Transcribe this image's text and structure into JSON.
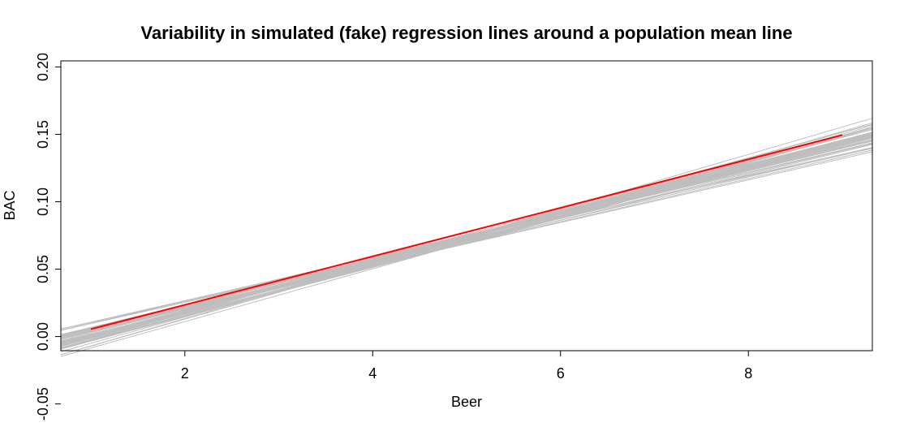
{
  "chart_data": {
    "type": "line",
    "title": "Variability in simulated (fake) regression lines around a population mean line",
    "xlabel": "Beer",
    "ylabel": "BAC",
    "xlim": [
      0.68,
      9.32
    ],
    "ylim": [
      -0.0105,
      0.2045
    ],
    "x_ticks": [
      2,
      4,
      6,
      8
    ],
    "y_ticks": [
      -0.05,
      0.0,
      0.05,
      0.1,
      0.15,
      0.2
    ],
    "y_tick_labels": [
      "-0.05",
      "0.00",
      "0.05",
      "0.10",
      "0.15",
      "0.20"
    ],
    "grid": false,
    "colors": {
      "simulated": "#bebebe",
      "population": "#ff0000",
      "axis": "#000000"
    },
    "population_line": {
      "x": [
        1,
        9
      ],
      "y": [
        0.0055,
        0.1495
      ]
    },
    "simulated_lines": {
      "count": 50,
      "pivot_x": 4.55,
      "pivot_y": 0.0646,
      "slopes": [
        0.0155,
        0.0168,
        0.0172,
        0.0181,
        0.0203,
        0.0176,
        0.0163,
        0.0185,
        0.0192,
        0.0171,
        0.0159,
        0.0178,
        0.0188,
        0.0169,
        0.0174,
        0.0183,
        0.0166,
        0.0196,
        0.0177,
        0.0161,
        0.0186,
        0.0173,
        0.0179,
        0.017,
        0.0184,
        0.0157,
        0.019,
        0.0175,
        0.0182,
        0.0167,
        0.0199,
        0.0164,
        0.018,
        0.0176,
        0.0187,
        0.016,
        0.0172,
        0.0194,
        0.0178,
        0.0169,
        0.0185,
        0.0174,
        0.0158,
        0.0189,
        0.0181,
        0.0171,
        0.0179,
        0.0165,
        0.0183,
        0.0177
      ],
      "offsets": [
        0.001,
        -0.0015,
        0.0022,
        -0.003,
        0.0005,
        -0.0008,
        0.0031,
        -0.0021,
        0.0014,
        -0.0004,
        0.0026,
        -0.0012,
        0.0007,
        -0.0027,
        0.0018,
        -0.0002,
        0.0011,
        -0.0035,
        0.0024,
        -0.0017,
        0.0003,
        0.0029,
        -0.0009,
        0.0016,
        -0.0024,
        0.0008,
        -0.0005,
        0.002,
        -0.0033,
        0.0012,
        -0.001,
        0.0034,
        -0.0019,
        0.0006,
        0.0015,
        -0.0026,
        0.0025,
        -0.0007,
        0.0002,
        0.0019,
        -0.0014,
        0.0009,
        -0.0029,
        0.0027,
        -0.0001,
        0.0013,
        -0.0022,
        0.0004,
        0.0017,
        -0.0011
      ]
    }
  }
}
